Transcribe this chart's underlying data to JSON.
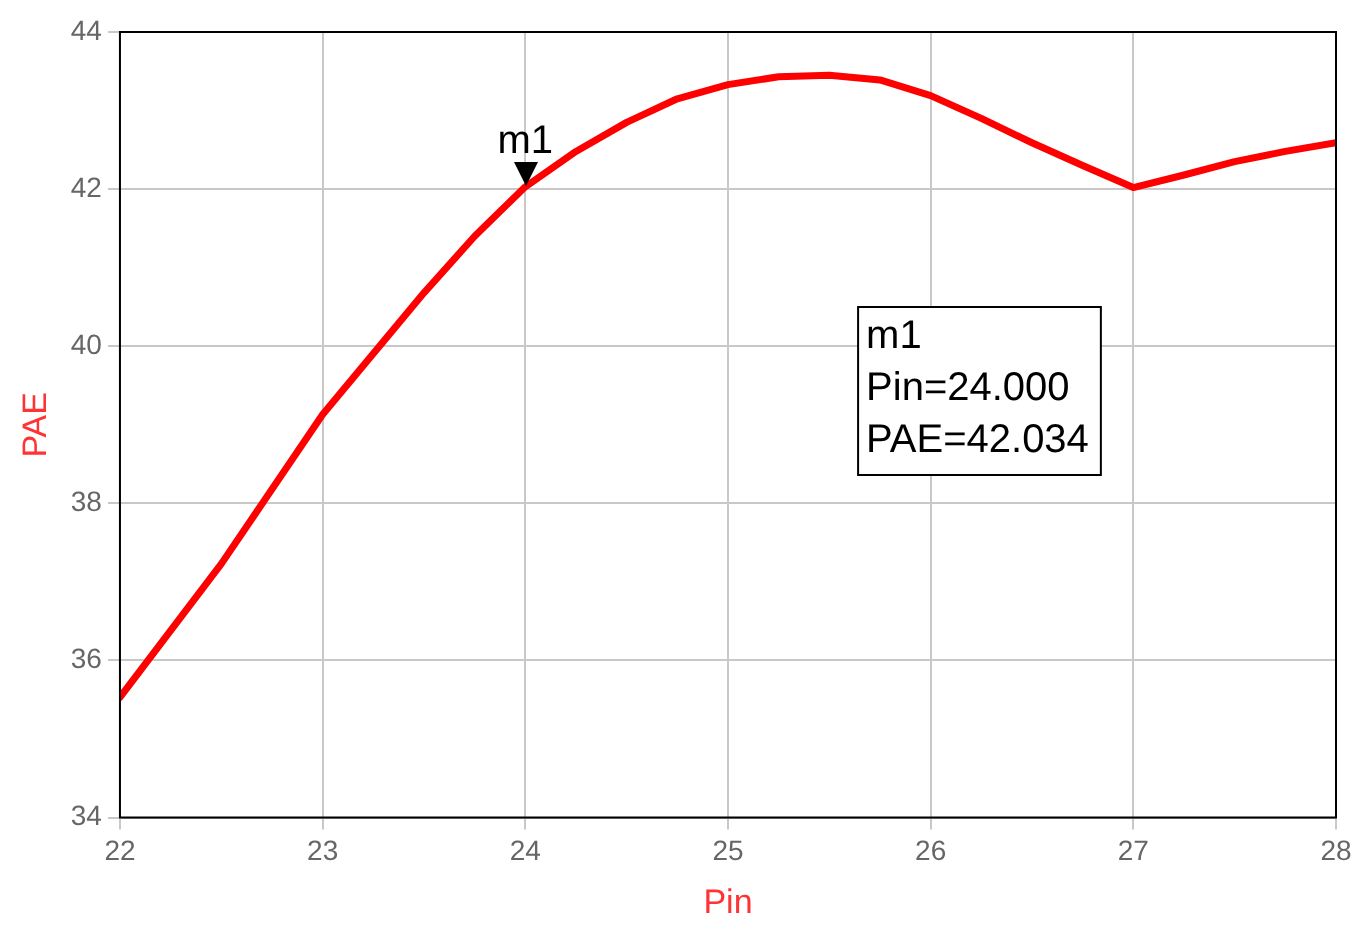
{
  "chart_data": {
    "type": "line",
    "xlabel": "Pin",
    "ylabel": "PAE",
    "x": [
      22,
      22.5,
      23,
      23.5,
      23.75,
      24,
      24.25,
      24.5,
      24.75,
      25,
      25.25,
      25.5,
      25.75,
      26,
      26.25,
      26.5,
      26.75,
      27,
      27.25,
      27.5,
      27.75,
      28
    ],
    "series": [
      {
        "color": "#ff0000",
        "values": [
          35.53,
          37.23,
          39.13,
          40.68,
          41.4,
          42.03,
          42.48,
          42.85,
          43.15,
          43.33,
          43.43,
          43.45,
          43.39,
          43.19,
          42.9,
          42.59,
          42.3,
          42.02,
          42.18,
          42.35,
          42.48,
          42.59
        ]
      }
    ],
    "xlim": [
      22,
      28
    ],
    "xticks": [
      22,
      23,
      24,
      25,
      26,
      27,
      28
    ],
    "ylim": [
      34,
      44
    ],
    "yticks": [
      34,
      36,
      38,
      40,
      42,
      44
    ],
    "grid": true,
    "legend": false,
    "marker": "none",
    "line_style": "solid",
    "annotations": [
      {
        "text": "m1",
        "x": 24,
        "y": 42.034
      },
      "m1\nPin=24.000\nPAE=42.034"
    ]
  }
}
